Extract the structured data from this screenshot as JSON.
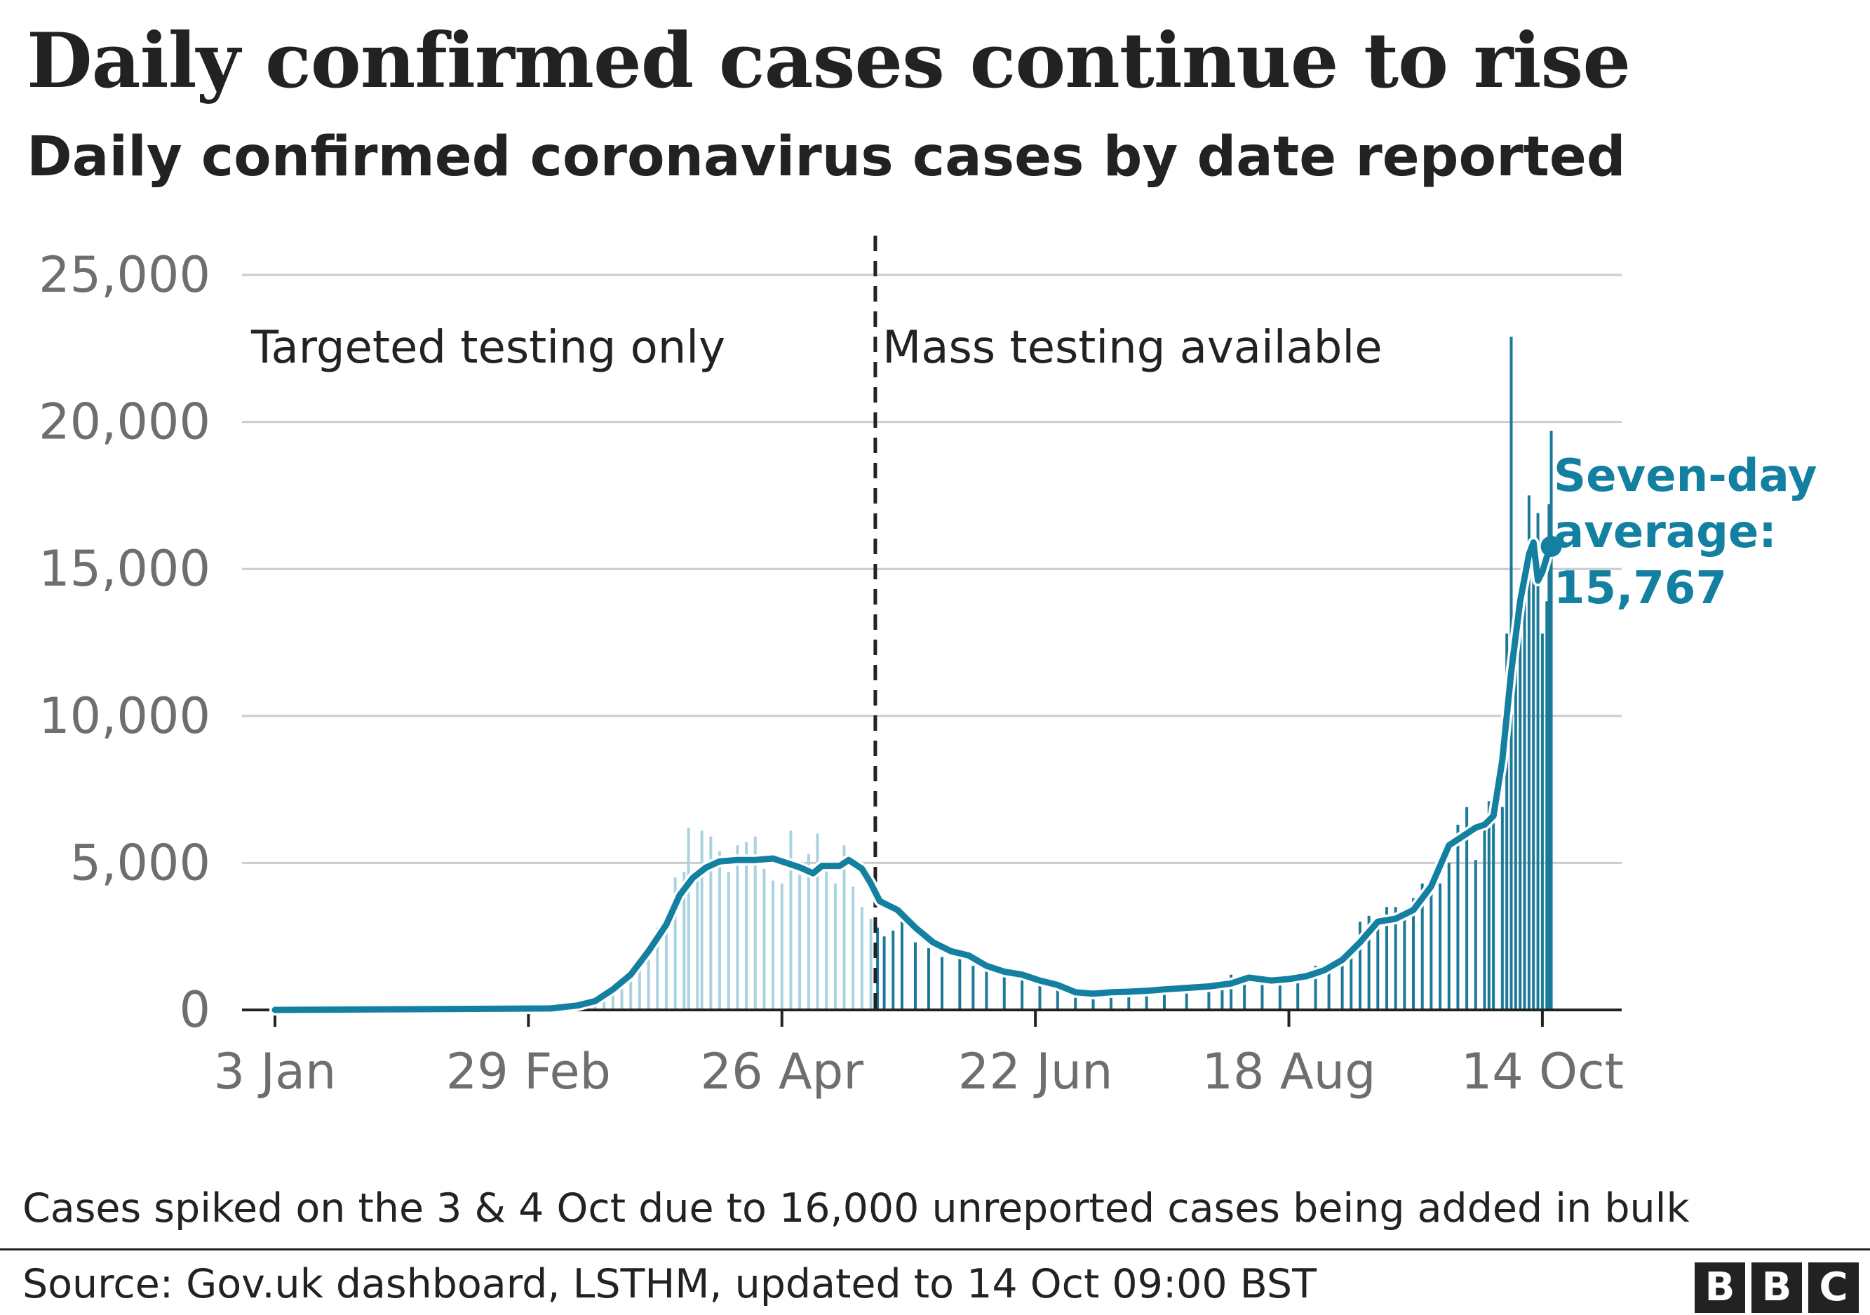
{
  "title": "Daily confirmed cases continue to rise",
  "subtitle": "Daily confirmed coronavirus cases by date reported",
  "note": "Cases spiked on the 3 & 4 Oct due to 16,000 unreported cases being added in bulk",
  "source": "Source: Gov.uk dashboard, LSTHM, updated to 14 Oct 09:00 BST",
  "logo": [
    "B",
    "B",
    "C"
  ],
  "chart_data": {
    "type": "bar",
    "x_axis": {
      "start": "3 Jan",
      "end": "14 Oct",
      "ticks": [
        {
          "label": "3 Jan",
          "day": 0
        },
        {
          "label": "29 Feb",
          "day": 57
        },
        {
          "label": "26 Apr",
          "day": 114
        },
        {
          "label": "22 Jun",
          "day": 171
        },
        {
          "label": "18 Aug",
          "day": 228
        },
        {
          "label": "14 Oct",
          "day": 285
        }
      ]
    },
    "y_axis": {
      "ylim": [
        0,
        25000
      ],
      "ticks": [
        {
          "value": 0,
          "label": "0"
        },
        {
          "value": 5000,
          "label": "5,000"
        },
        {
          "value": 10000,
          "label": "10,000"
        },
        {
          "value": 15000,
          "label": "15,000"
        },
        {
          "value": 20000,
          "label": "20,000"
        },
        {
          "value": 25000,
          "label": "25,000"
        }
      ]
    },
    "grid": true,
    "divider": {
      "day": 135,
      "style": "dashed"
    },
    "regions": [
      {
        "label": "Targeted testing only"
      },
      {
        "label": "Mass testing available"
      }
    ],
    "series": [
      {
        "key": "daily",
        "kind": "bar",
        "color_before": "#a9d3df",
        "color_after": "#1c7a99"
      },
      {
        "key": "avg",
        "kind": "line",
        "color": "#1380a1"
      }
    ],
    "daily_points": [
      [
        69,
        0
      ],
      [
        72,
        400
      ],
      [
        74,
        500
      ],
      [
        76,
        700
      ],
      [
        78,
        900
      ],
      [
        80,
        1300
      ],
      [
        82,
        1700
      ],
      [
        84,
        2200
      ],
      [
        86,
        2800
      ],
      [
        88,
        3000
      ],
      [
        90,
        4500
      ],
      [
        92,
        4700
      ],
      [
        93,
        6200
      ],
      [
        95,
        4500
      ],
      [
        96,
        6100
      ],
      [
        98,
        5900
      ],
      [
        100,
        5400
      ],
      [
        102,
        4700
      ],
      [
        104,
        5600
      ],
      [
        106,
        5700
      ],
      [
        108,
        5900
      ],
      [
        110,
        4800
      ],
      [
        112,
        4400
      ],
      [
        114,
        4300
      ],
      [
        116,
        6100
      ],
      [
        118,
        4600
      ],
      [
        120,
        5300
      ],
      [
        122,
        6000
      ],
      [
        124,
        4800
      ],
      [
        126,
        4300
      ],
      [
        128,
        5600
      ],
      [
        130,
        4200
      ],
      [
        132,
        3500
      ],
      [
        134,
        3100
      ],
      [
        135.5,
        2800
      ],
      [
        137,
        2500
      ],
      [
        139,
        2700
      ],
      [
        141,
        3100
      ],
      [
        144,
        2300
      ],
      [
        147,
        2100
      ],
      [
        150,
        1800
      ],
      [
        154,
        1900
      ],
      [
        157,
        1500
      ],
      [
        160,
        1300
      ],
      [
        164,
        1350
      ],
      [
        168,
        1200
      ],
      [
        172,
        1000
      ],
      [
        176,
        800
      ],
      [
        180,
        500
      ],
      [
        184,
        550
      ],
      [
        188,
        650
      ],
      [
        192,
        600
      ],
      [
        196,
        700
      ],
      [
        200,
        800
      ],
      [
        205,
        800
      ],
      [
        210,
        900
      ],
      [
        213,
        1000
      ],
      [
        215,
        1200
      ],
      [
        218,
        1100
      ],
      [
        222,
        1000
      ],
      [
        226,
        1100
      ],
      [
        230,
        1200
      ],
      [
        234,
        1500
      ],
      [
        237,
        1600
      ],
      [
        240,
        1900
      ],
      [
        242,
        2000
      ],
      [
        244,
        3000
      ],
      [
        246,
        3200
      ],
      [
        248,
        2800
      ],
      [
        250,
        3500
      ],
      [
        252,
        3500
      ],
      [
        254,
        3300
      ],
      [
        256,
        3800
      ],
      [
        258,
        4300
      ],
      [
        260,
        4500
      ],
      [
        262,
        4300
      ],
      [
        264,
        5000
      ],
      [
        266,
        6300
      ],
      [
        268,
        6900
      ],
      [
        270,
        5100
      ],
      [
        272,
        6200
      ],
      [
        273,
        7100
      ],
      [
        274,
        7100
      ],
      [
        276,
        6900
      ],
      [
        277,
        12800
      ],
      [
        278,
        22900
      ],
      [
        279,
        12800
      ],
      [
        280,
        14500
      ],
      [
        281,
        14900
      ],
      [
        282,
        17500
      ],
      [
        283,
        15000
      ],
      [
        284,
        16900
      ],
      [
        285,
        12800
      ],
      [
        286,
        13900
      ],
      [
        286.5,
        17200
      ],
      [
        287,
        19700
      ]
    ],
    "average_points": [
      [
        0,
        0
      ],
      [
        62,
        50
      ],
      [
        68,
        150
      ],
      [
        72,
        300
      ],
      [
        76,
        700
      ],
      [
        80,
        1200
      ],
      [
        84,
        2000
      ],
      [
        88,
        2900
      ],
      [
        91,
        3900
      ],
      [
        94,
        4500
      ],
      [
        97,
        4850
      ],
      [
        100,
        5050
      ],
      [
        104,
        5100
      ],
      [
        108,
        5100
      ],
      [
        112,
        5150
      ],
      [
        115,
        5000
      ],
      [
        118,
        4850
      ],
      [
        121,
        4650
      ],
      [
        123,
        4900
      ],
      [
        127,
        4900
      ],
      [
        129,
        5100
      ],
      [
        132,
        4800
      ],
      [
        134,
        4300
      ],
      [
        136,
        3700
      ],
      [
        140,
        3400
      ],
      [
        144,
        2800
      ],
      [
        148,
        2300
      ],
      [
        152,
        2000
      ],
      [
        156,
        1850
      ],
      [
        160,
        1500
      ],
      [
        164,
        1300
      ],
      [
        168,
        1200
      ],
      [
        172,
        1000
      ],
      [
        176,
        850
      ],
      [
        180,
        600
      ],
      [
        184,
        550
      ],
      [
        188,
        600
      ],
      [
        192,
        620
      ],
      [
        196,
        650
      ],
      [
        200,
        700
      ],
      [
        205,
        750
      ],
      [
        210,
        800
      ],
      [
        215,
        900
      ],
      [
        219,
        1100
      ],
      [
        224,
        1000
      ],
      [
        228,
        1050
      ],
      [
        232,
        1150
      ],
      [
        236,
        1350
      ],
      [
        240,
        1700
      ],
      [
        244,
        2300
      ],
      [
        248,
        3000
      ],
      [
        252,
        3100
      ],
      [
        256,
        3400
      ],
      [
        260,
        4200
      ],
      [
        264,
        5600
      ],
      [
        267,
        5900
      ],
      [
        270,
        6200
      ],
      [
        272,
        6300
      ],
      [
        274,
        6600
      ],
      [
        276,
        8500
      ],
      [
        278,
        11500
      ],
      [
        280,
        13900
      ],
      [
        282,
        15500
      ],
      [
        283,
        15900
      ],
      [
        284,
        14600
      ],
      [
        285,
        14900
      ],
      [
        286,
        15400
      ],
      [
        287,
        15767
      ]
    ],
    "endpoint": {
      "day": 287,
      "value": 15767,
      "label_lines": [
        "Seven-day",
        "average:",
        "15,767"
      ]
    }
  }
}
